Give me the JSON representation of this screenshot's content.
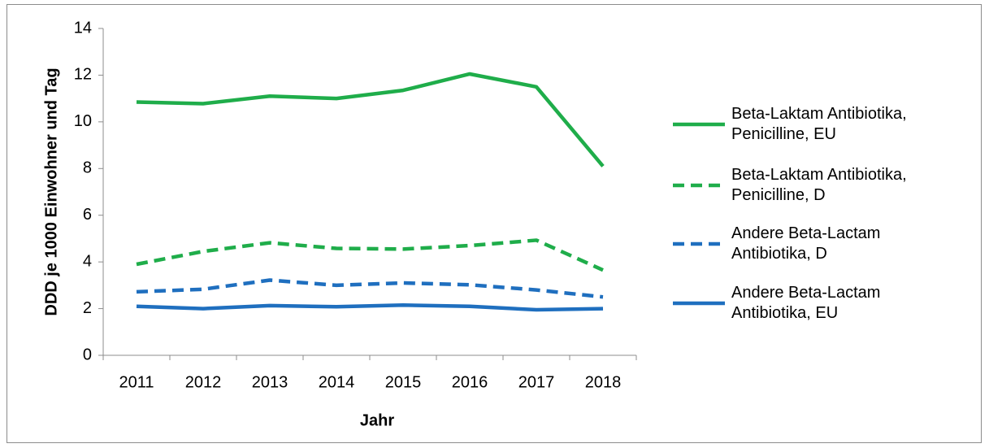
{
  "chart_data": {
    "type": "line",
    "x_label": "Jahr",
    "y_label": "DDD je 1000 Einwohner und Tag",
    "categories": [
      "2011",
      "2012",
      "2013",
      "2014",
      "2015",
      "2016",
      "2017",
      "2018"
    ],
    "ylim": [
      0,
      14
    ],
    "yticks": [
      0,
      2,
      4,
      6,
      8,
      10,
      12,
      14
    ],
    "legend": "right",
    "series": [
      {
        "name": "Beta-Laktam Antibiotika, Penicilline, EU",
        "color": "#1fad4a",
        "line_style": "solid",
        "values": [
          10.85,
          10.78,
          11.1,
          11.0,
          11.35,
          12.05,
          11.5,
          8.1
        ]
      },
      {
        "name": "Beta-Laktam Antibiotika, Penicilline, D",
        "color": "#1fad4a",
        "line_style": "dashed",
        "values": [
          3.9,
          4.45,
          4.82,
          4.58,
          4.55,
          4.7,
          4.93,
          3.65
        ]
      },
      {
        "name": "Andere Beta-Lactam Antibiotika, D",
        "color": "#1f6fbf",
        "line_style": "dashed",
        "values": [
          2.72,
          2.83,
          3.22,
          3.0,
          3.1,
          3.02,
          2.8,
          2.5
        ]
      },
      {
        "name": "Andere Beta-Lactam Antibiotika, EU",
        "color": "#1f6fbf",
        "line_style": "solid",
        "values": [
          2.1,
          2.0,
          2.13,
          2.08,
          2.15,
          2.1,
          1.95,
          2.0
        ]
      }
    ]
  }
}
